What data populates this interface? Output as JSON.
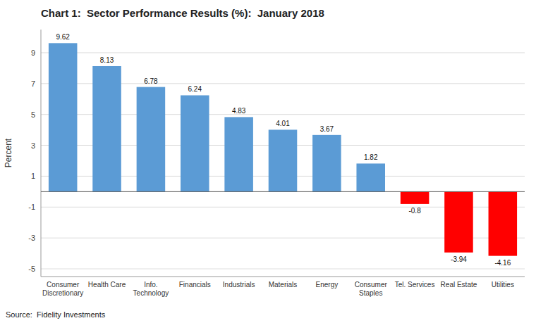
{
  "chart_data": {
    "type": "bar",
    "title": "Chart 1:  Sector Performance Results (%):  January 2018",
    "categories": [
      "Consumer\nDiscretionary",
      "Health Care",
      "Info.\nTechnology",
      "Financials",
      "Industrials",
      "Materials",
      "Energy",
      "Consumer\nStaples",
      "Tel. Services",
      "Real Estate",
      "Utilities"
    ],
    "values": [
      9.62,
      8.13,
      6.78,
      6.24,
      4.83,
      4.01,
      3.67,
      1.82,
      -0.8,
      -3.94,
      -4.16
    ],
    "colors": [
      "#5B9BD5",
      "#5B9BD5",
      "#5B9BD5",
      "#5B9BD5",
      "#5B9BD5",
      "#5B9BD5",
      "#5B9BD5",
      "#5B9BD5",
      "#FF0000",
      "#FF0000",
      "#FF0000"
    ],
    "ylabel": "Percent",
    "ylim": [
      -5.5,
      10.5
    ],
    "yticks": [
      -5,
      -3,
      -1,
      1,
      3,
      5,
      7,
      9
    ],
    "grid": true,
    "data_labels": true,
    "annotations": [
      "Source:  Fidelity Investments"
    ]
  }
}
